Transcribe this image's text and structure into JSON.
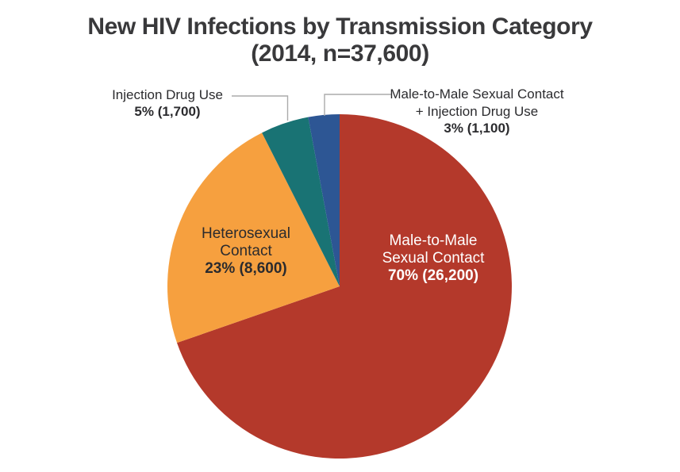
{
  "title": {
    "line1": "New HIV Infections by Transmission Category",
    "line2": "(2014, n=37,600)"
  },
  "chart_data": {
    "type": "pie",
    "title": "New HIV Infections by Transmission Category",
    "subtitle": "(2014, n=37,600)",
    "year": 2014,
    "n_total": 37600,
    "direction": "clockwise",
    "start_angle_deg": 0,
    "legend_position": "none",
    "categories": [
      "Male-to-Male Sexual Contact",
      "Heterosexual Contact",
      "Injection Drug Use",
      "Male-to-Male Sexual Contact + Injection Drug Use"
    ],
    "values": [
      26200,
      8600,
      1700,
      1100
    ],
    "percents": [
      70,
      23,
      5,
      3
    ],
    "value_labels": [
      "70% (26,200)",
      "23% (8,600)",
      "5% (1,700)",
      "3% (1,100)"
    ],
    "colors": [
      "#B4392B",
      "#F6A03F",
      "#197374",
      "#2D5694"
    ]
  },
  "labels": {
    "msm": {
      "line1": "Male-to-Male",
      "line2": "Sexual Contact",
      "value": "70% (26,200)"
    },
    "heterosexual": {
      "line1": "Heterosexual",
      "line2": "Contact",
      "value": "23% (8,600)"
    },
    "idu": {
      "line1": "Injection Drug Use",
      "value": "5% (1,700)"
    },
    "msm_idu": {
      "line1": "Male-to-Male Sexual Contact",
      "line2": "+ Injection Drug Use",
      "value": "3% (1,100)"
    }
  }
}
